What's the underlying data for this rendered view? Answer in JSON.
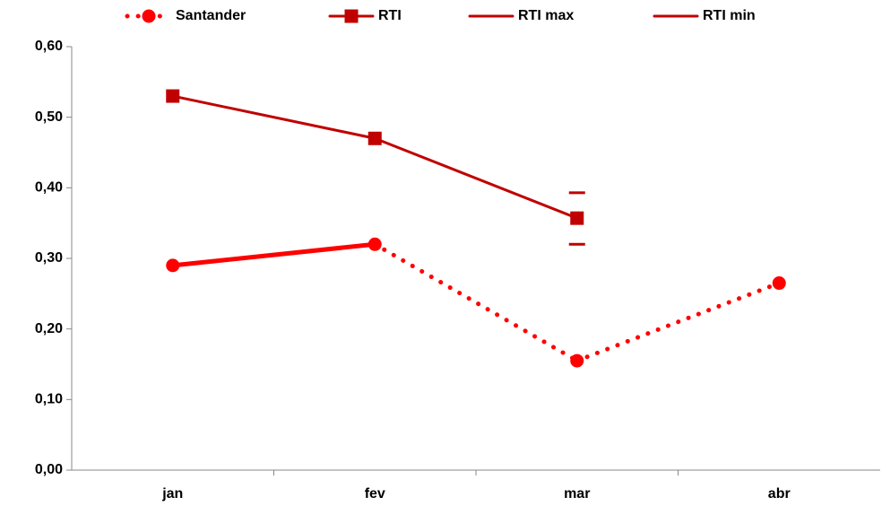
{
  "chart_data": {
    "type": "line",
    "categories": [
      "jan",
      "fev",
      "mar",
      "abr"
    ],
    "series": [
      {
        "name": "Santander",
        "color": "#ff0000",
        "values": [
          0.29,
          0.32,
          0.155,
          0.265
        ],
        "marker": "circle",
        "line": "dotted",
        "solid_segments": [
          0
        ],
        "line_width": 5
      },
      {
        "name": "RTI",
        "color": "#c00000",
        "values": [
          0.53,
          0.47,
          0.357,
          null
        ],
        "marker": "square",
        "line": "solid",
        "line_width": 3
      },
      {
        "name": "RTI max",
        "color": "#c00000",
        "values": [
          null,
          null,
          0.393,
          null
        ],
        "marker": "dash",
        "line": "solid",
        "line_width": 3
      },
      {
        "name": "RTI min",
        "color": "#c00000",
        "values": [
          null,
          null,
          0.32,
          null
        ],
        "marker": "dash",
        "line": "solid",
        "line_width": 3
      }
    ],
    "ylim": [
      0,
      0.6
    ],
    "yticks": [
      {
        "value": 0,
        "label": "0,00"
      },
      {
        "value": 0.1,
        "label": "0,10"
      },
      {
        "value": 0.2,
        "label": "0,20"
      },
      {
        "value": 0.3,
        "label": "0,30"
      },
      {
        "value": 0.4,
        "label": "0,40"
      },
      {
        "value": 0.5,
        "label": "0,50"
      },
      {
        "value": 0.6,
        "label": "0,60"
      }
    ],
    "legend": "top",
    "grid": false
  }
}
